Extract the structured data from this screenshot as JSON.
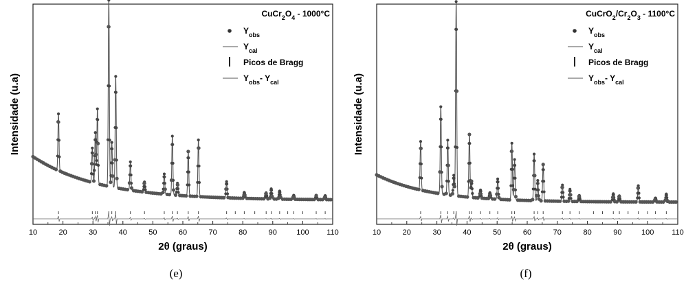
{
  "chart_data": [
    {
      "type": "scatter",
      "panel_label": "(e)",
      "title_parts": [
        [
          "CuCr",
          "n"
        ],
        [
          "2",
          "sub"
        ],
        [
          "O",
          "n"
        ],
        [
          "4",
          "sub"
        ],
        [
          " - 1000°C",
          "n"
        ]
      ],
      "xlabel": "2θ (graus)",
      "ylabel": "Intensidade (u.a)",
      "xlim": [
        10,
        110
      ],
      "xticks": [
        10,
        20,
        30,
        40,
        50,
        60,
        70,
        80,
        90,
        100,
        110
      ],
      "yticks_shown": false,
      "legend": {
        "placement": "top-right",
        "entries": [
          {
            "marker": "dot",
            "parts": [
              [
                "Y",
                "n"
              ],
              [
                "obs",
                "sub"
              ]
            ]
          },
          {
            "marker": "line",
            "parts": [
              [
                "Y",
                "n"
              ],
              [
                "cal",
                "sub"
              ]
            ]
          },
          {
            "marker": "bar",
            "parts": [
              [
                "Picos de Bragg",
                "n"
              ]
            ]
          },
          {
            "marker": "line",
            "parts": [
              [
                "Y",
                "n"
              ],
              [
                "obs",
                "sub"
              ],
              [
                "- Y",
                "n"
              ],
              [
                "cal",
                "sub"
              ]
            ]
          }
        ]
      },
      "background": {
        "start": 0.26,
        "end": 0.045,
        "decay": 22
      },
      "peaks": [
        {
          "x": 18.5,
          "h": 0.28
        },
        {
          "x": 29.8,
          "h": 0.17
        },
        {
          "x": 30.8,
          "h": 0.25
        },
        {
          "x": 31.5,
          "h": 0.37
        },
        {
          "x": 35.3,
          "h": 0.92
        },
        {
          "x": 36.3,
          "h": 0.22
        },
        {
          "x": 37.6,
          "h": 0.55
        },
        {
          "x": 42.5,
          "h": 0.14
        },
        {
          "x": 47.2,
          "h": 0.05
        },
        {
          "x": 53.8,
          "h": 0.1
        },
        {
          "x": 56.5,
          "h": 0.29
        },
        {
          "x": 58.2,
          "h": 0.06
        },
        {
          "x": 61.8,
          "h": 0.22
        },
        {
          "x": 65.2,
          "h": 0.28
        },
        {
          "x": 74.6,
          "h": 0.08
        },
        {
          "x": 80.5,
          "h": 0.03
        },
        {
          "x": 87.8,
          "h": 0.03
        },
        {
          "x": 89.5,
          "h": 0.05
        },
        {
          "x": 92.3,
          "h": 0.04
        },
        {
          "x": 97.0,
          "h": 0.02
        },
        {
          "x": 104.5,
          "h": 0.02
        },
        {
          "x": 107.5,
          "h": 0.02
        }
      ],
      "bragg_ticks": [
        18.5,
        29.8,
        30.8,
        31.5,
        35.3,
        36.3,
        37.6,
        42.5,
        47.2,
        53.8,
        56.5,
        58.2,
        61.8,
        65.2,
        74.6,
        77.5,
        80.5,
        84.0,
        87.8,
        89.5,
        92.3,
        95.0,
        97.0,
        100.0,
        104.5,
        107.5
      ]
    },
    {
      "type": "scatter",
      "panel_label": "(f)",
      "title_parts": [
        [
          "CuCrO",
          "n"
        ],
        [
          "2",
          "sub"
        ],
        [
          "/Cr",
          "n"
        ],
        [
          "2",
          "sub"
        ],
        [
          "O",
          "n"
        ],
        [
          "3",
          "sub"
        ],
        [
          " - 1100°C",
          "n"
        ]
      ],
      "xlabel": "2θ (graus)",
      "ylabel": "Intensidade (u.a)",
      "xlim": [
        10,
        110
      ],
      "xticks": [
        10,
        20,
        30,
        40,
        50,
        60,
        70,
        80,
        90,
        100,
        110
      ],
      "yticks_shown": false,
      "legend": {
        "placement": "top-right",
        "entries": [
          {
            "marker": "dot",
            "parts": [
              [
                "Y",
                "n"
              ],
              [
                "obs",
                "sub"
              ]
            ]
          },
          {
            "marker": "line",
            "parts": [
              [
                "Y",
                "n"
              ],
              [
                "cal",
                "sub"
              ]
            ]
          },
          {
            "marker": "bar",
            "parts": [
              [
                "Picos de Bragg",
                "n"
              ]
            ]
          },
          {
            "marker": "line",
            "parts": [
              [
                "Y",
                "n"
              ],
              [
                "obs",
                "sub"
              ],
              [
                "- Y",
                "n"
              ],
              [
                "cal",
                "sub"
              ]
            ]
          }
        ]
      },
      "background": {
        "start": 0.17,
        "end": 0.035,
        "decay": 18
      },
      "peaks": [
        {
          "x": 24.6,
          "h": 0.24
        },
        {
          "x": 31.3,
          "h": 0.43
        },
        {
          "x": 33.6,
          "h": 0.27
        },
        {
          "x": 35.6,
          "h": 0.1
        },
        {
          "x": 36.4,
          "h": 0.96
        },
        {
          "x": 40.8,
          "h": 0.31
        },
        {
          "x": 41.5,
          "h": 0.08
        },
        {
          "x": 44.5,
          "h": 0.04
        },
        {
          "x": 47.6,
          "h": 0.03
        },
        {
          "x": 50.2,
          "h": 0.1
        },
        {
          "x": 54.9,
          "h": 0.28
        },
        {
          "x": 55.8,
          "h": 0.2
        },
        {
          "x": 62.3,
          "h": 0.23
        },
        {
          "x": 63.5,
          "h": 0.1
        },
        {
          "x": 65.3,
          "h": 0.18
        },
        {
          "x": 71.7,
          "h": 0.08
        },
        {
          "x": 74.2,
          "h": 0.06
        },
        {
          "x": 77.3,
          "h": 0.03
        },
        {
          "x": 88.6,
          "h": 0.04
        },
        {
          "x": 90.6,
          "h": 0.03
        },
        {
          "x": 96.9,
          "h": 0.08
        },
        {
          "x": 102.6,
          "h": 0.02
        },
        {
          "x": 106.2,
          "h": 0.04
        }
      ],
      "bragg_ticks": [
        24.6,
        31.3,
        33.6,
        35.6,
        36.4,
        40.8,
        41.5,
        44.5,
        47.6,
        50.2,
        54.9,
        55.8,
        62.3,
        63.5,
        65.3,
        71.7,
        74.2,
        77.3,
        82.0,
        85.0,
        88.6,
        90.6,
        93.5,
        96.9,
        100.0,
        102.6,
        106.2
      ]
    }
  ]
}
